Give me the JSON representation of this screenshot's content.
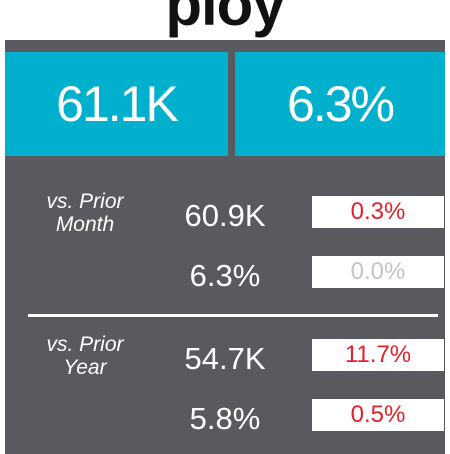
{
  "header": {
    "title": "ploy"
  },
  "kpi": {
    "value": "61.1K",
    "rate": "6.3%"
  },
  "comparisons": [
    {
      "label": [
        "vs. Prior",
        "Month"
      ],
      "rows": [
        {
          "value": "60.9K",
          "change": "0.3%",
          "color": "#e3202b"
        },
        {
          "value": "6.3%",
          "change": "0.0%",
          "color": "#c4c4c4"
        }
      ]
    },
    {
      "label": [
        "vs. Prior",
        "Year"
      ],
      "rows": [
        {
          "value": "54.7K",
          "change": "11.7%",
          "color": "#e3202b"
        },
        {
          "value": "5.8%",
          "change": "0.5%",
          "color": "#e3202b"
        }
      ]
    }
  ]
}
